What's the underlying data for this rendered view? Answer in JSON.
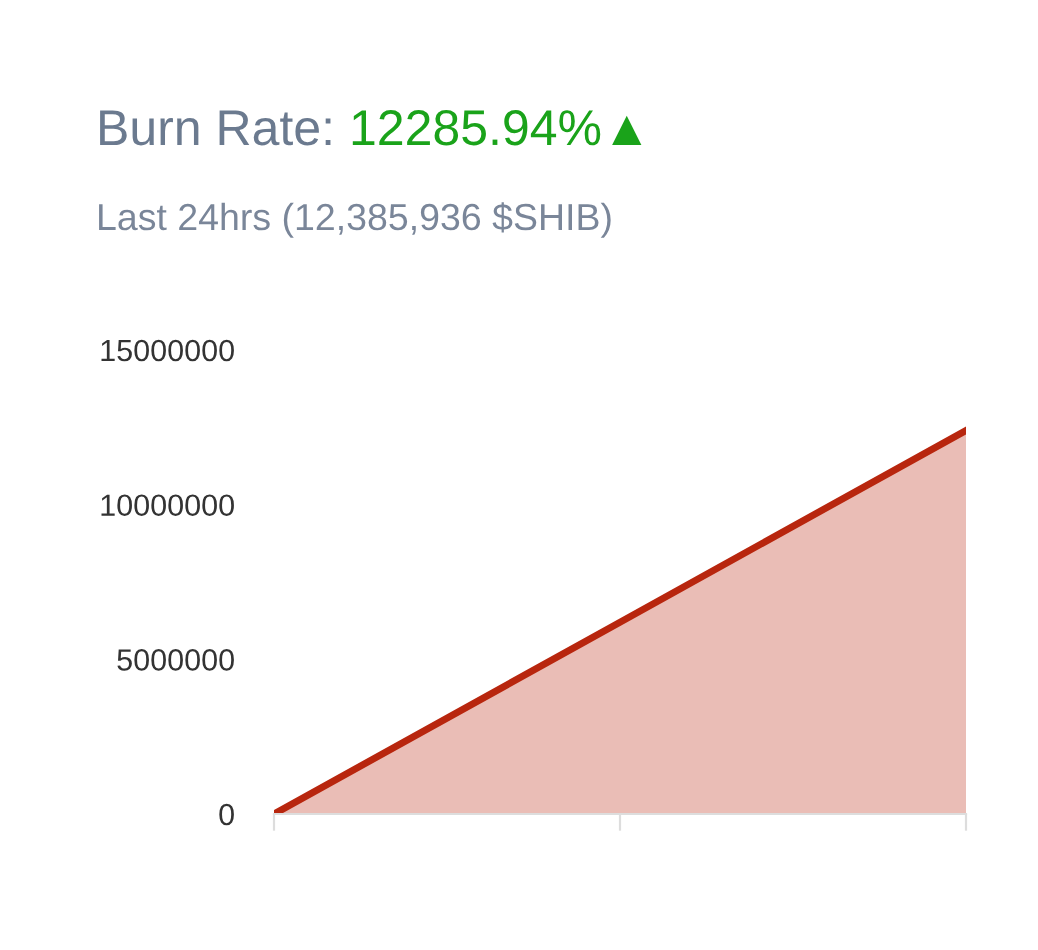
{
  "chart_data": {
    "type": "area",
    "title": "Burn Rate:",
    "subtitle": "Last 24hrs (12,385,936 $SHIB)",
    "annotations": [
      "12285.94%▲"
    ],
    "categories": [
      null,
      null,
      null
    ],
    "series": [
      {
        "color": "#b8260e",
        "values": [
          0,
          6200000,
          12400000
        ]
      }
    ],
    "ylim": [
      0,
      15000000
    ],
    "yticks": [
      0,
      5000000,
      10000000,
      15000000
    ],
    "grid": false,
    "legend": false
  }
}
